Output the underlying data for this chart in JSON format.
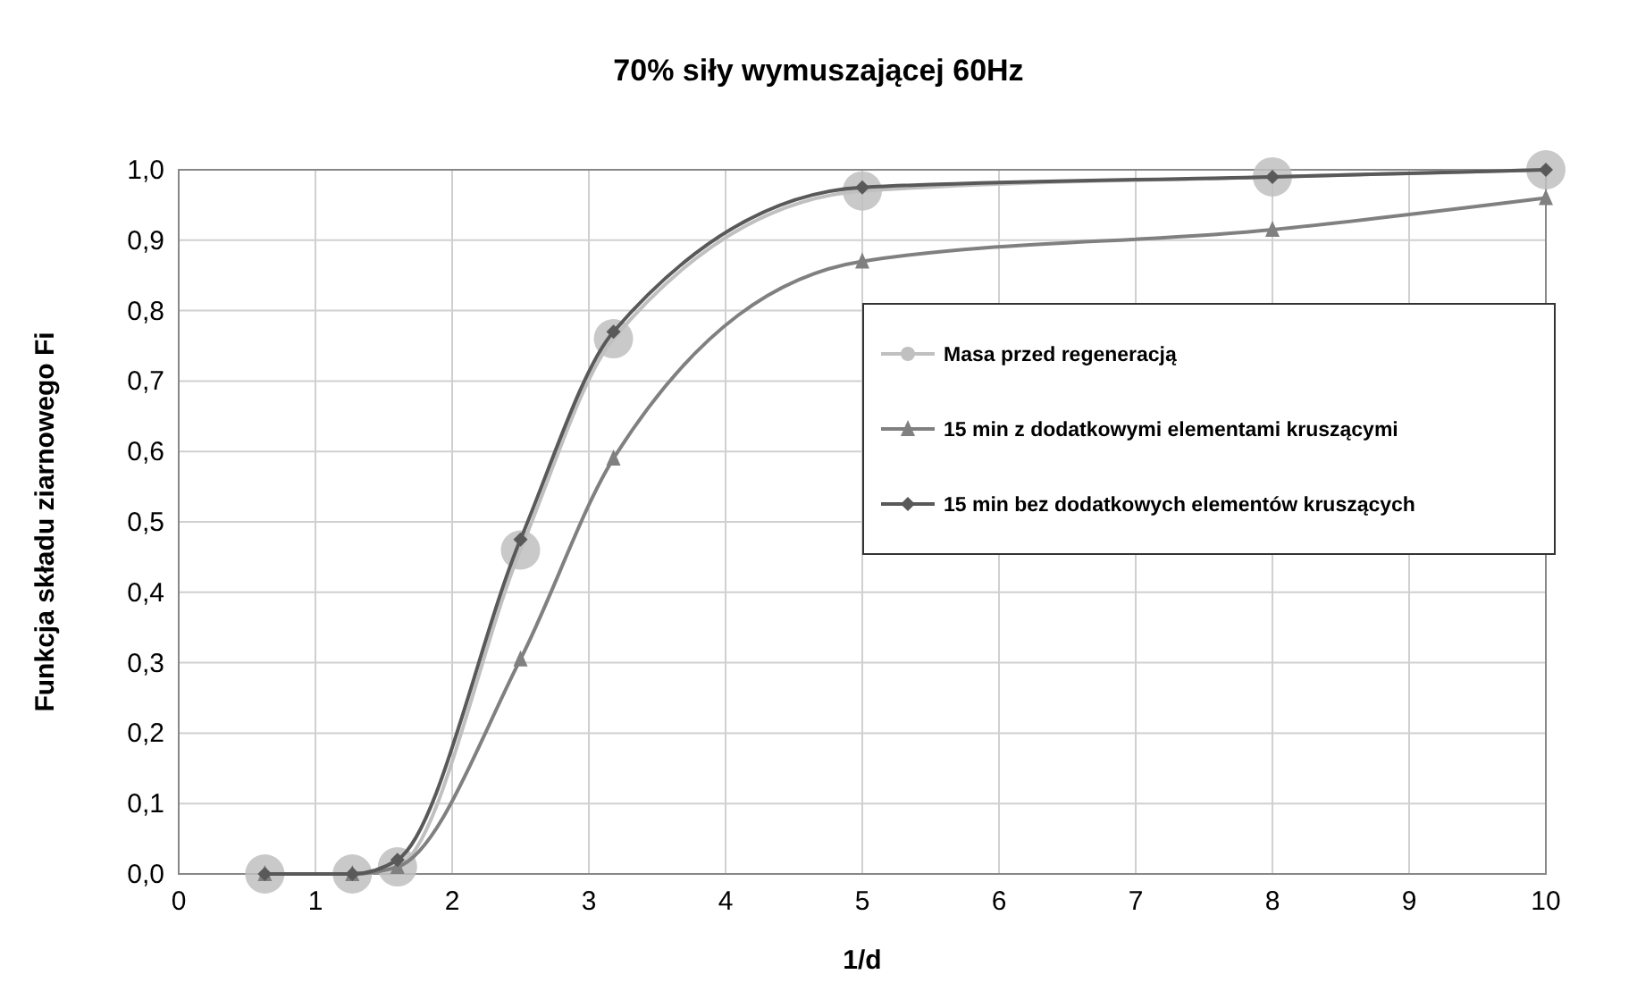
{
  "chart_data": {
    "type": "line",
    "title": "70% siły wymuszającej 60Hz",
    "xlabel": "1/d",
    "ylabel": "Funkcja składu ziarnowego Fi",
    "x": [
      0.63,
      1.27,
      1.6,
      2.5,
      3.18,
      5,
      8,
      10
    ],
    "series": [
      {
        "name": "Masa przed regeneracją",
        "color": "#c0c0c0",
        "marker": "circle",
        "values": [
          0,
          0,
          0.01,
          0.46,
          0.76,
          0.97,
          0.99,
          1.0
        ]
      },
      {
        "name": "15 min z dodatkowymi elementami kruszącymi",
        "color": "#808080",
        "marker": "triangle",
        "values": [
          0,
          0,
          0.01,
          0.305,
          0.59,
          0.87,
          0.915,
          0.96
        ]
      },
      {
        "name": "15 min bez dodatkowych elementów kruszących",
        "color": "#595959",
        "marker": "diamond",
        "values": [
          0,
          0,
          0.02,
          0.475,
          0.77,
          0.975,
          0.99,
          1.0
        ]
      }
    ],
    "xlim": [
      0,
      10
    ],
    "xticks": [
      0,
      1,
      2,
      3,
      4,
      5,
      6,
      7,
      8,
      9,
      10
    ],
    "ylim": [
      0,
      1
    ],
    "yticks": [
      {
        "value": 0,
        "label": "0,0"
      },
      {
        "value": 0.1,
        "label": "0,1"
      },
      {
        "value": 0.2,
        "label": "0,2"
      },
      {
        "value": 0.3,
        "label": "0,3"
      },
      {
        "value": 0.4,
        "label": "0,4"
      },
      {
        "value": 0.5,
        "label": "0,5"
      },
      {
        "value": 0.6,
        "label": "0,6"
      },
      {
        "value": 0.7,
        "label": "0,7"
      },
      {
        "value": 0.8,
        "label": "0,8"
      },
      {
        "value": 0.9,
        "label": "0,9"
      },
      {
        "value": 1,
        "label": "1,0"
      }
    ],
    "grid": true,
    "legend": "right"
  }
}
